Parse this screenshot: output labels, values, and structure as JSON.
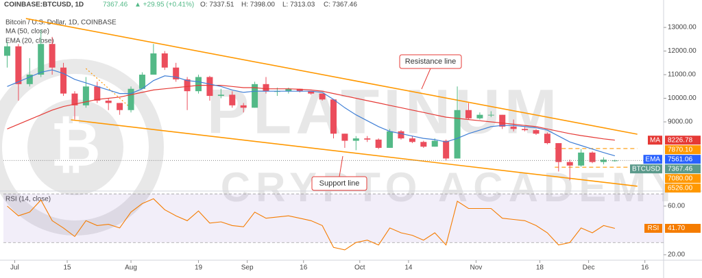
{
  "chart_data": {
    "type": "candlestick",
    "header": {
      "symbol": "COINBASE:BTCUSD, 1D",
      "last": "7367.46",
      "change": "▲ +29.95 (+0.41%)",
      "ohlc": [
        "O: 7337.51",
        "H: 7398.00",
        "L: 7313.03",
        "C: 7367.46"
      ]
    },
    "title": "Bitcoin / U.S. Dollar, 1D, COINBASE",
    "watermark": [
      "PLATINUM",
      "CRYPTO ACADEMY"
    ],
    "x": [
      "Jun 29",
      "Jul 2",
      "Jul 5",
      "Jul 8",
      "Jul 11",
      "Jul 14",
      "Jul 17",
      "Jul 20",
      "Jul 23",
      "Jul 26",
      "Jul 29",
      "Aug 1",
      "Aug 4",
      "Aug 7",
      "Aug 10",
      "Aug 13",
      "Aug 16",
      "Aug 19",
      "Aug 22",
      "Aug 25",
      "Aug 28",
      "Aug 31",
      "Sep 3",
      "Sep 6",
      "Sep 9",
      "Sep 12",
      "Sep 15",
      "Sep 18",
      "Sep 21",
      "Sep 24",
      "Sep 27",
      "Sep 30",
      "Oct 3",
      "Oct 6",
      "Oct 9",
      "Oct 12",
      "Oct 15",
      "Oct 18",
      "Oct 21",
      "Oct 24",
      "Oct 27",
      "Oct 30",
      "Nov 2",
      "Nov 5",
      "Nov 8",
      "Nov 11",
      "Nov 14",
      "Nov 17",
      "Nov 20",
      "Nov 23",
      "Nov 26",
      "Nov 29",
      "Dec 2",
      "Dec 5",
      "Dec 8"
    ],
    "open": [
      11800,
      12200,
      10600,
      11000,
      12300,
      11300,
      10200,
      9700,
      10500,
      9900,
      9800,
      9500,
      10400,
      11000,
      11900,
      11300,
      10800,
      10300,
      10900,
      10100,
      10150,
      9700,
      9600,
      10600,
      10300,
      10300,
      10400,
      10300,
      10200,
      9950,
      8500,
      8200,
      8300,
      8250,
      7900,
      8600,
      8300,
      8150,
      7950,
      8200,
      7450,
      9500,
      9150,
      9300,
      9300,
      8800,
      8700,
      8650,
      8500,
      8100,
      7300,
      7150,
      7700,
      7300,
      7337.51
    ],
    "high": [
      12400,
      12300,
      11700,
      12900,
      12600,
      11500,
      10300,
      10900,
      10700,
      10000,
      9800,
      10500,
      11100,
      12300,
      12000,
      11500,
      10900,
      11000,
      10950,
      10400,
      10300,
      9800,
      10700,
      10900,
      10450,
      10450,
      10400,
      10300,
      10200,
      9950,
      8500,
      8400,
      8400,
      8300,
      8700,
      8650,
      8400,
      8200,
      8300,
      8250,
      10500,
      9800,
      9400,
      9450,
      9300,
      9100,
      8800,
      8700,
      8550,
      8100,
      7400,
      7850,
      7750,
      7500,
      7398
    ],
    "low": [
      11300,
      9900,
      10500,
      10900,
      11000,
      10100,
      9100,
      9600,
      9800,
      9500,
      9300,
      9400,
      10400,
      11000,
      11200,
      10700,
      9500,
      10200,
      9900,
      10000,
      9600,
      9400,
      9600,
      10200,
      10100,
      10200,
      10250,
      10150,
      9900,
      8300,
      7900,
      7800,
      8150,
      7850,
      7900,
      8250,
      8100,
      7900,
      7950,
      7350,
      7450,
      9100,
      9100,
      9200,
      8700,
      8600,
      8600,
      8450,
      8050,
      6900,
      6526,
      7100,
      7250,
      7200,
      7313.03
    ],
    "close": [
      12200,
      10600,
      11000,
      12300,
      11300,
      10200,
      9700,
      10500,
      9900,
      9800,
      9500,
      10400,
      11000,
      11900,
      11300,
      10800,
      10300,
      10900,
      10100,
      10150,
      9700,
      9600,
      10600,
      10300,
      10300,
      10400,
      10300,
      10200,
      9950,
      8500,
      8200,
      8300,
      8250,
      7900,
      8600,
      8300,
      8150,
      7950,
      8200,
      7450,
      9500,
      9150,
      9300,
      9300,
      8800,
      8700,
      8650,
      8500,
      8100,
      7300,
      7150,
      7700,
      7300,
      7400,
      7367.46
    ],
    "up_color": "#53b987",
    "down_color": "#eb4d5c",
    "series": [
      {
        "name": "MA (50, close)",
        "color": "#e53935",
        "values": [
          8700,
          8900,
          9100,
          9300,
          9500,
          9650,
          9750,
          9850,
          9950,
          10000,
          10050,
          10150,
          10250,
          10350,
          10400,
          10450,
          10500,
          10550,
          10550,
          10550,
          10500,
          10450,
          10450,
          10400,
          10400,
          10400,
          10380,
          10350,
          10300,
          10200,
          10100,
          10000,
          9900,
          9800,
          9700,
          9600,
          9500,
          9400,
          9300,
          9200,
          9150,
          9100,
          9050,
          9000,
          8950,
          8900,
          8850,
          8800,
          8700,
          8600,
          8500,
          8420,
          8350,
          8280,
          8226.78
        ]
      },
      {
        "name": "EMA (20, close)",
        "color": "#3f7fd6",
        "values": [
          10500,
          10700,
          10900,
          11100,
          11200,
          11050,
          10800,
          10650,
          10500,
          10350,
          10200,
          10200,
          10400,
          10750,
          10950,
          10900,
          10750,
          10700,
          10600,
          10500,
          10350,
          10250,
          10300,
          10300,
          10300,
          10300,
          10300,
          10300,
          10250,
          9950,
          9600,
          9300,
          9050,
          8800,
          8600,
          8500,
          8400,
          8300,
          8250,
          8150,
          8300,
          8500,
          8650,
          8800,
          8850,
          8850,
          8800,
          8750,
          8650,
          8400,
          8150,
          8000,
          7850,
          7700,
          7561.06
        ]
      }
    ],
    "xlim": [
      "Jun 28",
      "Dec 21"
    ],
    "xticks": [
      {
        "value": "Jul 1",
        "label": "Jul"
      },
      {
        "value": "Jul 15",
        "label": "15"
      },
      {
        "value": "Aug 1",
        "label": "Aug"
      },
      {
        "value": "Aug 19",
        "label": "19"
      },
      {
        "value": "Sep 1",
        "label": "Sep"
      },
      {
        "value": "Sep 16",
        "label": "16"
      },
      {
        "value": "Oct 1",
        "label": "Oct"
      },
      {
        "value": "Oct 14",
        "label": "14"
      },
      {
        "value": "Nov 1",
        "label": "Nov"
      },
      {
        "value": "Nov 18",
        "label": "18"
      },
      {
        "value": "Dec 1",
        "label": "Dec"
      },
      {
        "value": "Dec 16",
        "label": "16"
      }
    ],
    "ylim": [
      6100,
      13640
    ],
    "yticks": [
      {
        "value": 9000,
        "label": "9000.00"
      },
      {
        "value": 10000,
        "label": "10000.00"
      },
      {
        "value": 11000,
        "label": "11000.00"
      },
      {
        "value": 12000,
        "label": "12000.00"
      },
      {
        "value": 13000,
        "label": "13000.00"
      }
    ],
    "price_labels": [
      {
        "name": "MA",
        "value": 8226.78,
        "label": "8226.78",
        "color": "#e53935"
      },
      {
        "value": 7870.1,
        "label": "7870.10",
        "color": "#ff9800"
      },
      {
        "name": "EMA",
        "value": 7561.06,
        "label": "7561.06",
        "color": "#2962ff"
      },
      {
        "name": "BTCUSD",
        "value": 7367.46,
        "label": "7367.46",
        "color": "#5b9a8b"
      },
      {
        "value": 7080,
        "label": "7080.00",
        "color": "#ff9800"
      },
      {
        "value": 6526,
        "label": "6526.00",
        "color": "#ff9800"
      }
    ],
    "trendlines": [
      {
        "name": "Resistance line",
        "from": [
          "Jul 4",
          13377
        ],
        "to": [
          "Dec 14",
          8478
        ],
        "color": "#ff9800",
        "style": "solid"
      },
      {
        "name": "Support line",
        "from": [
          "Jul 16",
          9087
        ],
        "to": [
          "Dec 14",
          6275
        ],
        "color": "#ff9800",
        "style": "solid"
      },
      {
        "from": [
          "Nov 22",
          7870.1
        ],
        "to": [
          "Dec 14",
          7870.1
        ],
        "color": "#ff9800",
        "style": "dashed"
      },
      {
        "from": [
          "Nov 22",
          7080
        ],
        "to": [
          "Dec 14",
          7080
        ],
        "color": "#ff9800",
        "style": "dashed"
      },
      {
        "from": [
          "Jul 20",
          11260
        ],
        "to": [
          "Aug 1",
          9580
        ],
        "color": "#ff9800",
        "style": "dotted"
      }
    ],
    "rsi": {
      "name": "RSI (14, close)",
      "color": "#f57c00",
      "values": [
        60,
        52,
        55,
        65,
        48,
        42,
        35,
        48,
        44,
        45,
        42,
        55,
        62,
        66,
        57,
        52,
        48,
        56,
        46,
        47,
        44,
        43,
        55,
        50,
        51,
        52,
        50,
        48,
        44,
        26,
        24,
        30,
        32,
        28,
        42,
        38,
        36,
        32,
        38,
        28,
        64,
        58,
        58,
        58,
        50,
        49,
        48,
        44,
        38,
        28,
        30,
        42,
        38,
        44,
        41.7
      ],
      "ylim": [
        15.5,
        71.8
      ],
      "yticks": [
        {
          "value": 20,
          "label": "20.00"
        },
        {
          "value": 60,
          "label": "60.00"
        }
      ],
      "band": [
        30,
        70
      ],
      "last_label": {
        "name": "RSI",
        "value": 41.7,
        "label": "41.70",
        "color": "#f57c00"
      }
    }
  }
}
